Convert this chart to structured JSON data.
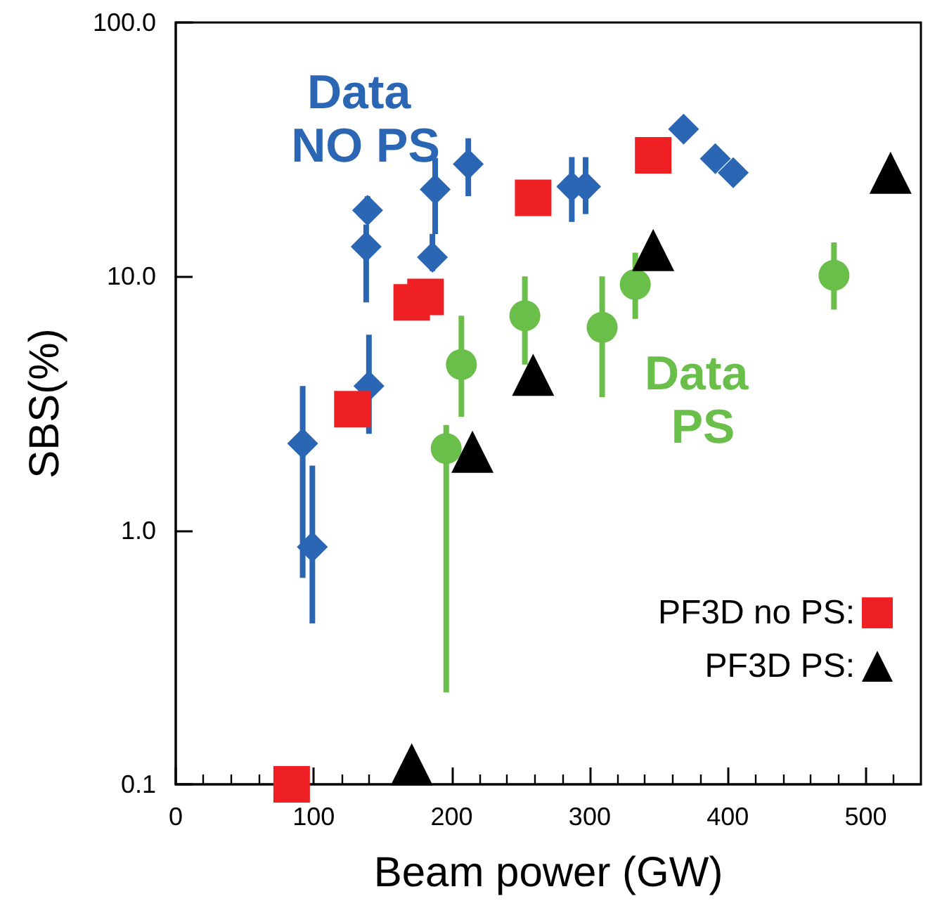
{
  "chart_data": {
    "type": "scatter",
    "xlabel": "Beam power (GW)",
    "ylabel": "SBS(%)",
    "xlim": [
      0,
      540
    ],
    "xticks": [
      0,
      100,
      200,
      300,
      400,
      500
    ],
    "ylim": [
      0.1,
      100
    ],
    "yticks": [
      {
        "value": 0.1,
        "label": "0.1"
      },
      {
        "value": 1,
        "label": "1.0"
      },
      {
        "value": 10,
        "label": "10.0"
      },
      {
        "value": 100,
        "label": "100.0"
      }
    ],
    "log": "y",
    "grid": false,
    "legend": "bottom right",
    "series": [
      {
        "name": "Data NO PS",
        "color": "#2a66b4",
        "marker": "diamond",
        "x": [
          99,
          140,
          138,
          186,
          212,
          287,
          368,
          391
        ],
        "values": [
          0.86,
          3.7,
          13.1,
          11.9,
          27.7,
          22.6,
          38,
          29.1
        ],
        "errors": [
          [
            0.43,
            1.8
          ],
          [
            2.4,
            5.9
          ],
          [
            7.9,
            16
          ],
          [
            10.5,
            14.7
          ],
          [
            20.7,
            35
          ],
          [
            16.4,
            29.5
          ],
          null,
          null
        ]
      },
      {
        "color": "#2a66b4",
        "marker": "diamond",
        "x": [
          92,
          139,
          188,
          297,
          404
        ],
        "values": [
          2.2,
          18.2,
          22,
          22.6,
          25.6
        ],
        "errors": [
          [
            0.65,
            3.7
          ],
          [
            18.2,
            20.7
          ],
          [
            14.7,
            29.3
          ],
          [
            17.6,
            29.5
          ],
          null
        ]
      },
      {
        "name": "Data PS",
        "color": "#6abf4b",
        "marker": "circle",
        "x": [
          196,
          207,
          253,
          309,
          477
        ],
        "values": [
          2.1,
          4.5,
          7.0,
          6.3,
          10.1
        ],
        "errors": [
          [
            0.23,
            2.6
          ],
          [
            2.8,
            7.0
          ],
          [
            4.5,
            10
          ],
          [
            3.35,
            10
          ],
          [
            7.4,
            13.6
          ]
        ]
      },
      {
        "color": "#6abf4b",
        "marker": "circle",
        "x": [
          333
        ],
        "values": [
          9.3
        ],
        "errors": [
          [
            6.8,
            12.4
          ]
        ]
      },
      {
        "name": "PF3D no PS:",
        "color": "#ee2024",
        "marker": "square",
        "x": [
          84,
          128,
          171,
          181,
          259,
          346
        ],
        "values": [
          0.1,
          3.0,
          7.9,
          8.3,
          20.4,
          30
        ]
      },
      {
        "name": "PF3D PS:",
        "color": "#000000",
        "marker": "triangle",
        "x": [
          171,
          215,
          259,
          346,
          518
        ],
        "values": [
          0.12,
          2.04,
          4.1,
          12.7,
          25.6
        ]
      }
    ]
  }
}
